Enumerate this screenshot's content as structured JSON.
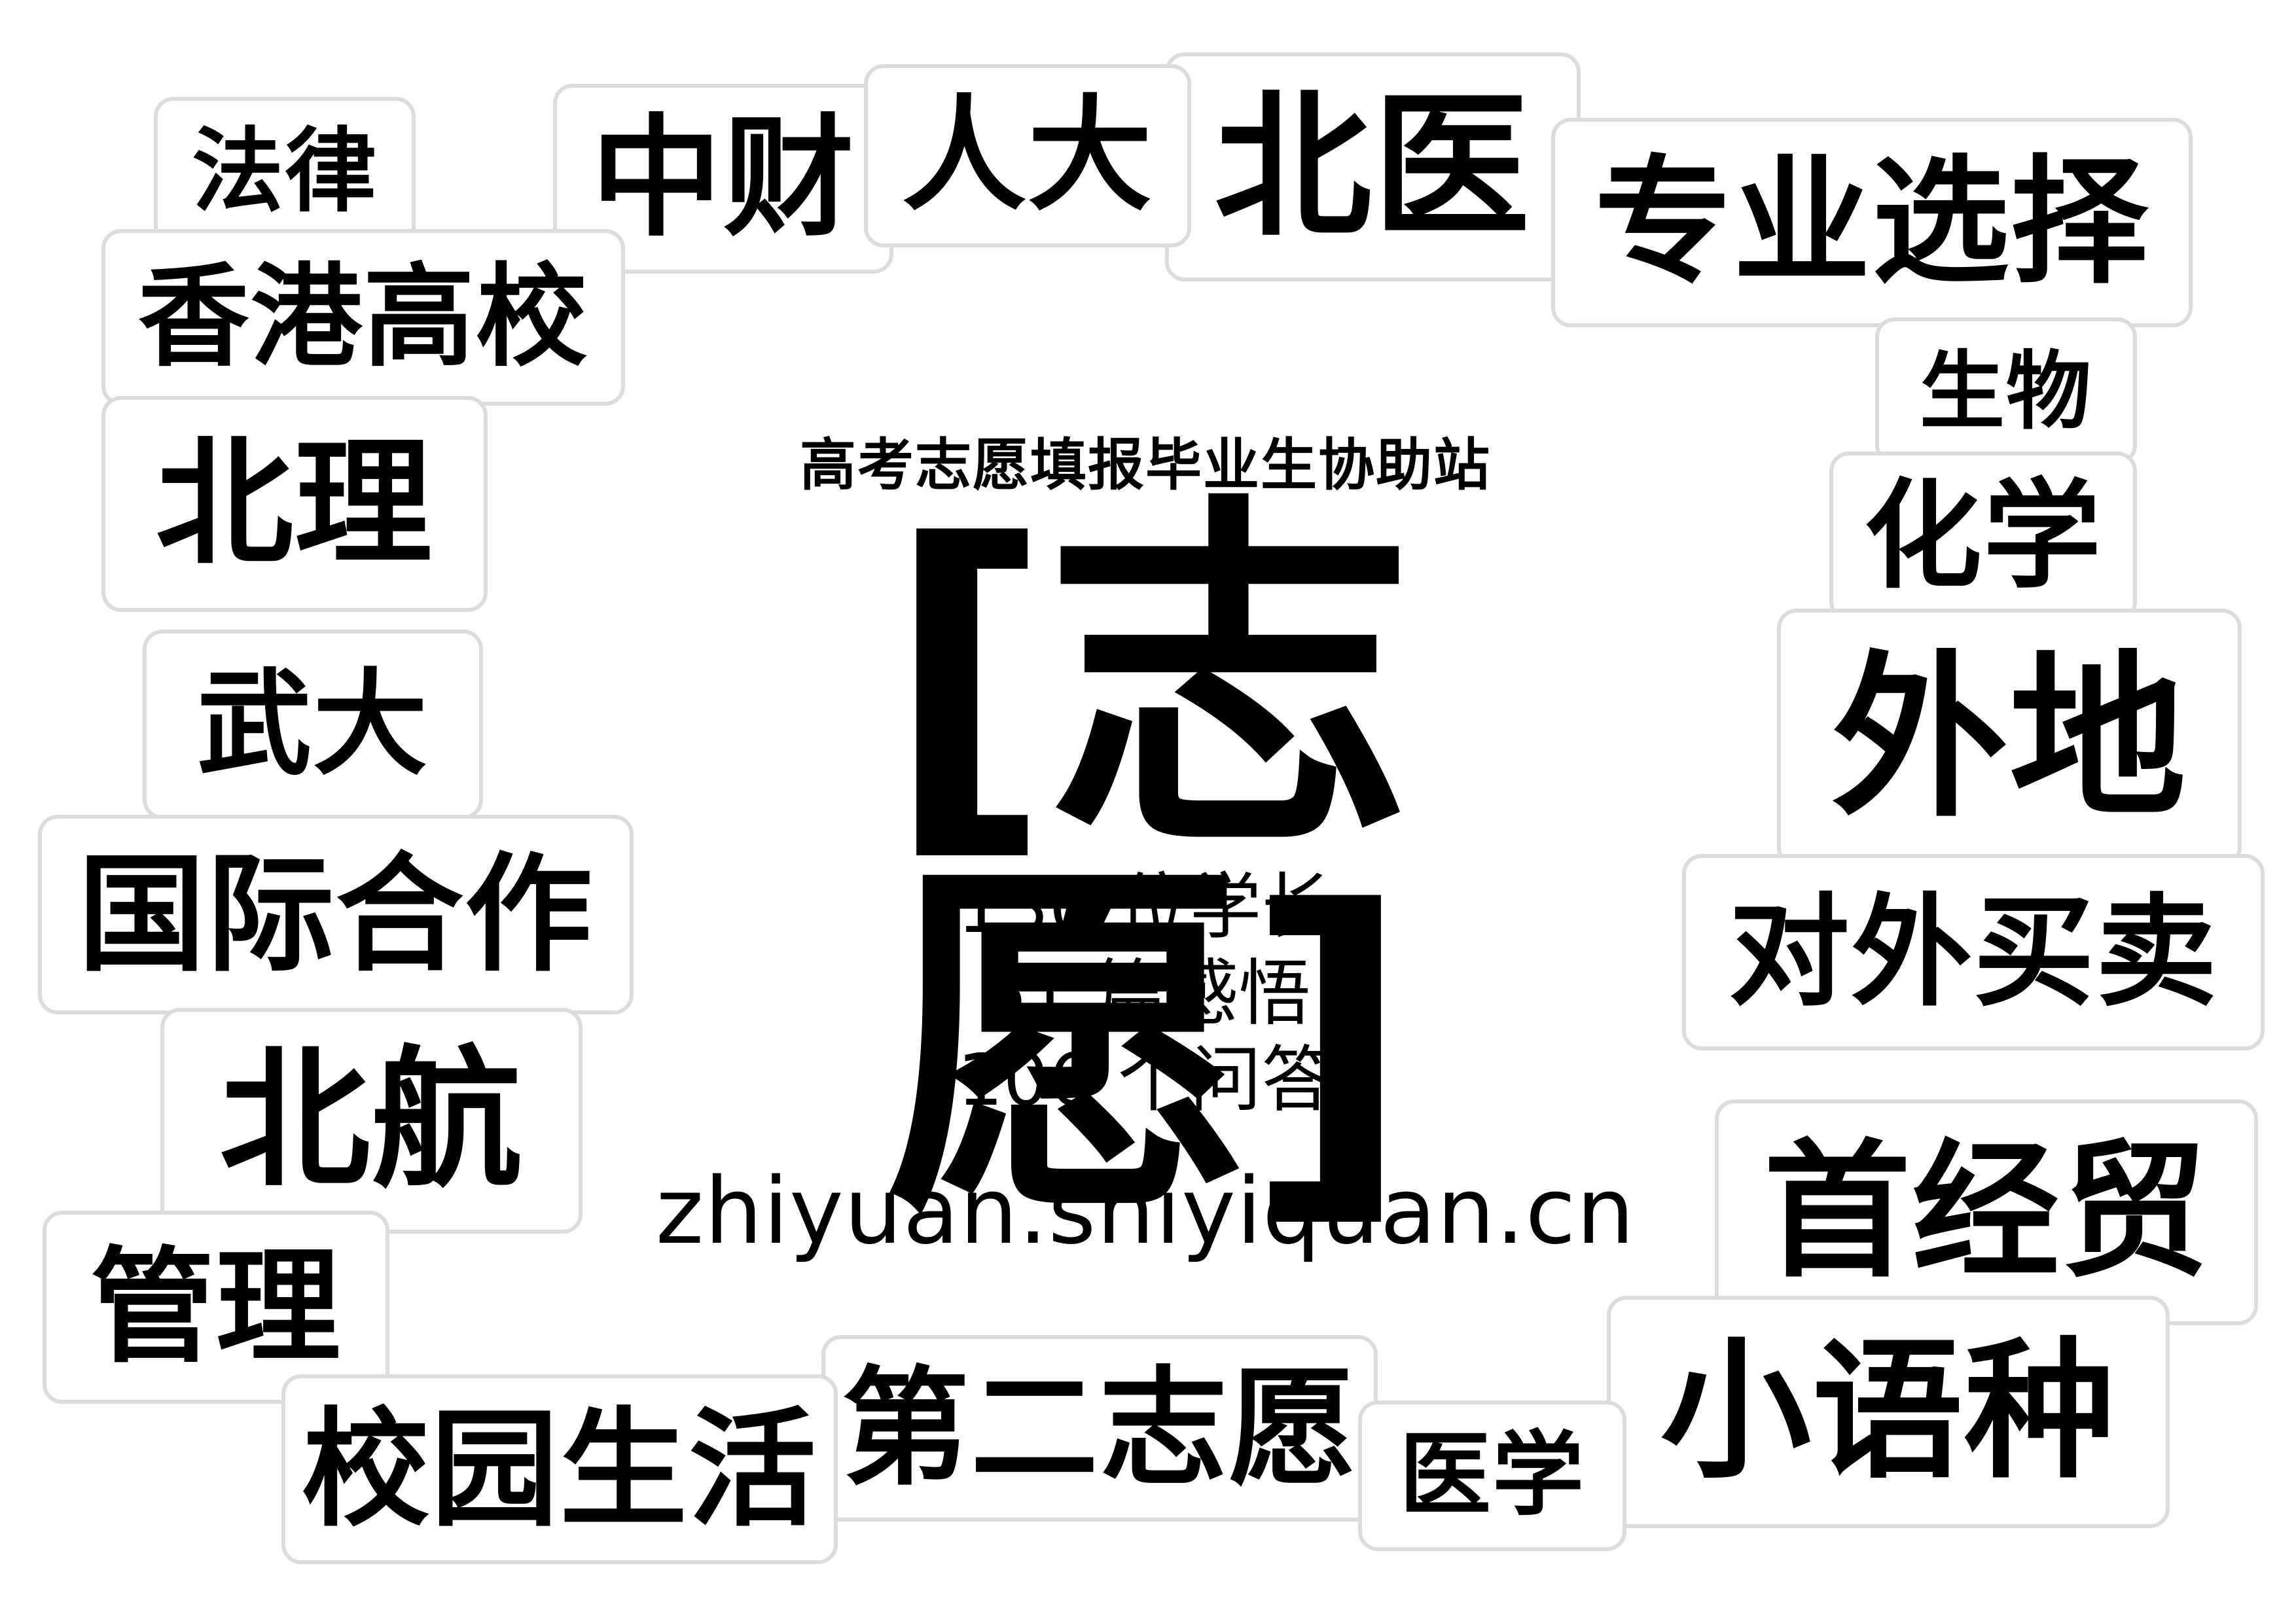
{
  "center": {
    "subtitle": "高考志愿填报毕业生协助站",
    "title": "[志愿]",
    "stats": [
      "130 位学长",
      "61 篇感悟",
      "106 个问答"
    ],
    "url": "zhiyuan.shiyiquan.cn"
  },
  "tags": [
    {
      "id": "tag-falv",
      "label": "法律"
    },
    {
      "id": "tag-zhongcai",
      "label": "中财"
    },
    {
      "id": "tag-renda",
      "label": "人大"
    },
    {
      "id": "tag-beiyi",
      "label": "北医"
    },
    {
      "id": "tag-zhuanye-xuanze",
      "label": "专业选择"
    },
    {
      "id": "tag-xianggang-gaoxiao",
      "label": "香港高校"
    },
    {
      "id": "tag-shengwu",
      "label": "生物"
    },
    {
      "id": "tag-beili",
      "label": "北理"
    },
    {
      "id": "tag-huaxue",
      "label": "化学"
    },
    {
      "id": "tag-wuda",
      "label": "武大"
    },
    {
      "id": "tag-waidi",
      "label": "外地"
    },
    {
      "id": "tag-guoji-hezuo",
      "label": "国际合作"
    },
    {
      "id": "tag-duiwai-maimai",
      "label": "对外买卖"
    },
    {
      "id": "tag-beihang",
      "label": "北航"
    },
    {
      "id": "tag-shoujingmao",
      "label": "首经贸"
    },
    {
      "id": "tag-guanli",
      "label": "管理"
    },
    {
      "id": "tag-xiaoyuzhong",
      "label": "小语种"
    },
    {
      "id": "tag-xiaoyuan-shenghuo",
      "label": "校园生活"
    },
    {
      "id": "tag-dier-zhiyuan",
      "label": "第二志愿"
    },
    {
      "id": "tag-yixue",
      "label": "医学"
    }
  ]
}
